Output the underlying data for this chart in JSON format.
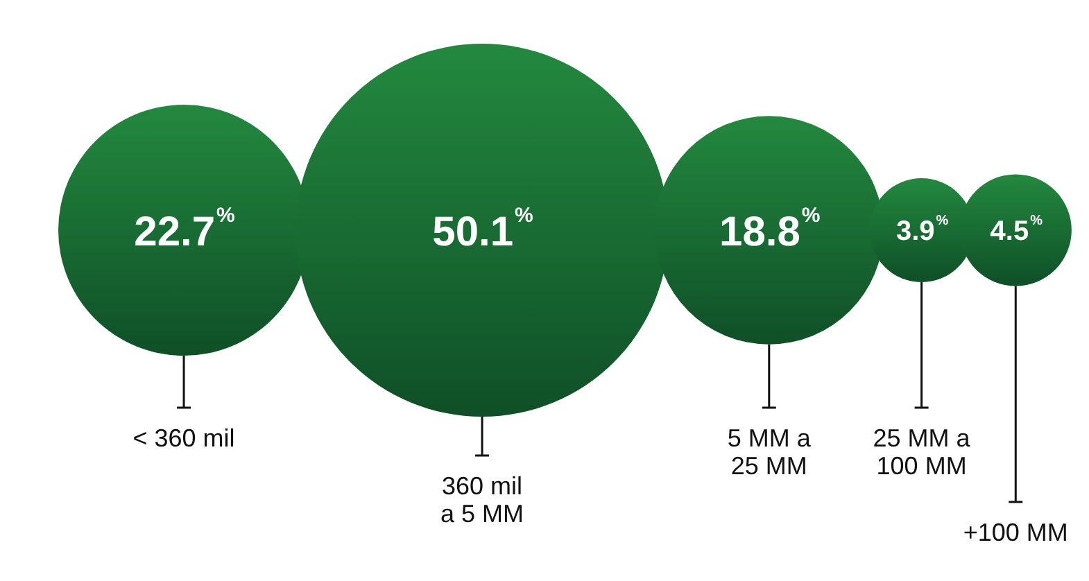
{
  "chart_data": {
    "type": "other",
    "categories": [
      "< 360 mil",
      "360 mil a 5 MM",
      "5 MM a 25 MM",
      "25 MM a 100 MM",
      "+100 MM"
    ],
    "values": [
      22.7,
      50.1,
      18.8,
      3.9,
      4.5
    ],
    "value_labels": [
      "22.7%",
      "50.1%",
      "18.8%",
      "3.9%",
      "4.5%"
    ],
    "colors": [
      "#1a6b35",
      "#1a6b35",
      "#1a6b35",
      "#1a6b35",
      "#1a6b35"
    ]
  }
}
